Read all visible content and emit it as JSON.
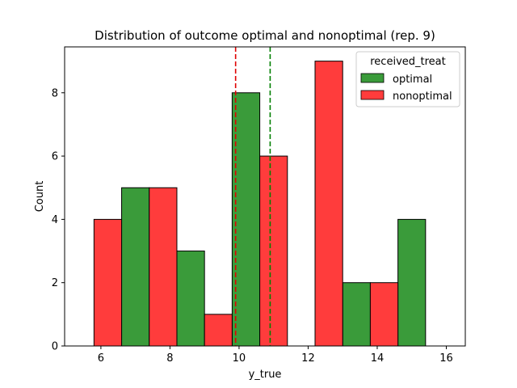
{
  "chart_data": {
    "type": "bar",
    "title": "Distribution of outcome optimal and nonoptimal (rep. 9)",
    "xlabel": "y_true",
    "ylabel": "Count",
    "xlim": [
      4.95,
      16.55
    ],
    "ylim": [
      0,
      9.45
    ],
    "xticks": [
      6,
      8,
      10,
      12,
      14,
      16
    ],
    "yticks": [
      0,
      2,
      4,
      6,
      8
    ],
    "bin_edges": [
      5.0,
      5.8,
      6.6,
      7.4,
      8.2,
      9.0,
      9.8,
      10.6,
      11.4,
      12.2,
      13.0,
      13.8,
      14.6,
      15.4,
      16.2
    ],
    "series": [
      {
        "name": "optimal",
        "color": "#3a9b3a",
        "values": [
          0,
          0,
          5,
          0,
          3,
          0,
          8,
          0,
          0,
          0,
          2,
          0,
          4,
          0
        ]
      },
      {
        "name": "nonoptimal",
        "color": "#ff3c3c",
        "values": [
          0,
          4,
          0,
          5,
          0,
          1,
          0,
          6,
          0,
          9,
          0,
          2,
          0,
          0
        ]
      }
    ],
    "vlines": [
      {
        "x": 9.9,
        "color": "#e00000",
        "style": "dashed"
      },
      {
        "x": 10.9,
        "color": "#008000",
        "style": "dashed"
      }
    ],
    "legend": {
      "title": "received_treat",
      "position": "top-right"
    },
    "grid": false
  }
}
